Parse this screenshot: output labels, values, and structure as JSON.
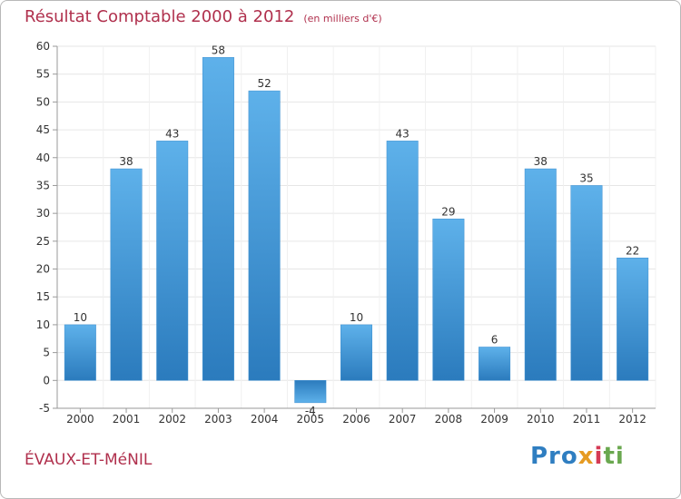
{
  "title": "Résultat Comptable 2000 à 2012",
  "subtitle": "(en milliers d'€)",
  "commune": "ÉVAUX-ET-MéNIL",
  "logo": {
    "p1": "Pro",
    "p2": "x",
    "p3": "i",
    "p4": "ti"
  },
  "colors": {
    "title": "#b0304d",
    "bar_top": "#5aaee8",
    "bar_bottom": "#2f7fc0",
    "grid": "#e3e3e3"
  },
  "chart_data": {
    "type": "bar",
    "categories": [
      "2000",
      "2001",
      "2002",
      "2003",
      "2004",
      "2005",
      "2006",
      "2007",
      "2008",
      "2009",
      "2010",
      "2011",
      "2012"
    ],
    "values": [
      10,
      38,
      43,
      58,
      52,
      -4,
      10,
      43,
      29,
      6,
      38,
      35,
      22
    ],
    "labels": [
      "10",
      "38",
      "43",
      "58",
      "52",
      "-4",
      "10",
      "43",
      "29",
      "6",
      "38",
      "35",
      "22"
    ],
    "yticks": [
      -5,
      0,
      5,
      10,
      15,
      20,
      25,
      30,
      35,
      40,
      45,
      50,
      55,
      60
    ],
    "ylim": [
      -5,
      60
    ],
    "grid": true,
    "xlabel": "",
    "ylabel": ""
  }
}
